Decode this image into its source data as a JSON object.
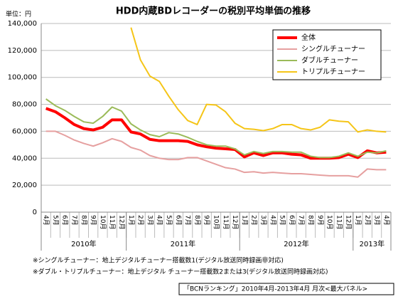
{
  "chart_data": {
    "type": "line",
    "title": "HDD内蔵BDレコーダーの税別平均単価の推移",
    "unit_label": "単位：円",
    "categories": [
      "4月",
      "5月",
      "6月",
      "7月",
      "8月",
      "9月",
      "10月",
      "11月",
      "12月",
      "1月",
      "2月",
      "3月",
      "4月",
      "5月",
      "6月",
      "7月",
      "8月",
      "9月",
      "10月",
      "11月",
      "12月",
      "1月",
      "2月",
      "3月",
      "4月",
      "5月",
      "6月",
      "7月",
      "8月",
      "9月",
      "10月",
      "11月",
      "12月",
      "1月",
      "2月",
      "3月",
      "4月"
    ],
    "years": [
      "2010年",
      "2011年",
      "2012年",
      "2013年"
    ],
    "ylim": [
      0,
      140000
    ],
    "yticks": [
      0,
      {
        "value": 20000,
        "label": "20,000"
      },
      {
        "value": 40000,
        "label": "40,000"
      },
      {
        "value": 60000,
        "label": "60,000"
      },
      {
        "value": 80000,
        "label": "80,000"
      },
      {
        "value": 100000,
        "label": "100,000"
      },
      {
        "value": 120000,
        "label": "120,000"
      },
      {
        "value": 140000,
        "label": "140,000"
      }
    ],
    "grid": true,
    "legend": "upper right",
    "series": [
      {
        "name": "全体",
        "color": "#ff0000",
        "width": 4,
        "values": [
          77000,
          74500,
          70000,
          65000,
          62000,
          61000,
          63000,
          68500,
          68500,
          59500,
          58000,
          54000,
          53000,
          53000,
          53000,
          52500,
          50000,
          48500,
          47500,
          47000,
          46500,
          41000,
          44000,
          42000,
          44000,
          44000,
          43000,
          42500,
          40000,
          40000,
          40000,
          40500,
          43000,
          40500,
          45500,
          44000,
          44500
        ]
      },
      {
        "name": "シングルチューナー",
        "color": "#e6a0a0",
        "width": 2,
        "values": [
          60000,
          60000,
          57000,
          53500,
          51000,
          49000,
          51500,
          54500,
          52500,
          48000,
          46000,
          42000,
          40000,
          39000,
          39000,
          40500,
          40500,
          38000,
          35500,
          33000,
          32000,
          29500,
          30000,
          29000,
          29500,
          29000,
          28500,
          28500,
          28000,
          27500,
          27000,
          27000,
          27000,
          26000,
          32000,
          31500,
          31500
        ]
      },
      {
        "name": "ダブルチューナー",
        "color": "#9bbb59",
        "width": 2,
        "values": [
          84000,
          79000,
          75500,
          71000,
          67000,
          66000,
          71000,
          78000,
          75000,
          65500,
          61000,
          57500,
          56000,
          59000,
          58000,
          55500,
          52500,
          50000,
          49000,
          49000,
          47000,
          42500,
          45000,
          43500,
          45000,
          45000,
          44500,
          44500,
          41500,
          40500,
          40500,
          41500,
          44000,
          41500,
          44500,
          44000,
          45500
        ]
      },
      {
        "name": "トリプルチューナー",
        "color": "#f5c518",
        "width": 2,
        "values": [
          null,
          null,
          null,
          null,
          null,
          null,
          null,
          null,
          null,
          137000,
          113000,
          101000,
          97000,
          86000,
          76000,
          68000,
          65000,
          80000,
          79500,
          74500,
          66000,
          62000,
          61500,
          60500,
          62000,
          65000,
          65000,
          62000,
          61000,
          63000,
          68500,
          67500,
          67000,
          59500,
          61000,
          60000,
          59500
        ]
      }
    ],
    "notes": [
      "※シングルチューナー：地上デジタルチューナー搭載数1(デジタル放送同時録画非対応)",
      "※ダブル・トリプルチューナー：地上デジタル チューナー搭載数2または3(デジタル放送同時録画対応)"
    ],
    "source": "「BCNランキング」2010年4月-2013年4月 月次<最大パネル>"
  }
}
